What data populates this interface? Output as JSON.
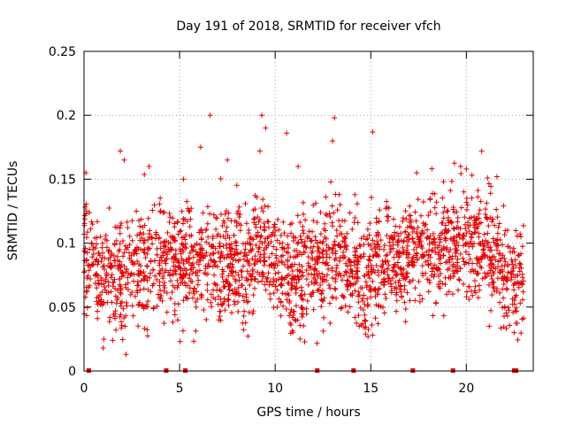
{
  "chart_data": {
    "type": "scatter",
    "title": "Day 191 of 2018, SRMTID for receiver vfch",
    "xlabel": "GPS time / hours",
    "ylabel": "SRMTID / TECUs",
    "xlim": [
      0,
      23.5
    ],
    "ylim": [
      0,
      0.25
    ],
    "x_ticks": [
      0,
      5,
      10,
      15,
      20
    ],
    "x_tick_labels": [
      "0",
      "5",
      "10",
      "15",
      "20"
    ],
    "y_ticks": [
      0,
      0.05,
      0.1,
      0.15,
      0.2,
      0.25
    ],
    "y_tick_labels": [
      "0",
      "0.05",
      "0.1",
      "0.15",
      "0.2",
      "0.25"
    ],
    "grid": true,
    "marker": "plus",
    "marker_color": "#e00000",
    "series": [
      {
        "name": "SRMTID",
        "trend": [
          {
            "x": 0.0,
            "y": 0.092
          },
          {
            "x": 0.5,
            "y": 0.082
          },
          {
            "x": 1.0,
            "y": 0.07
          },
          {
            "x": 1.5,
            "y": 0.075
          },
          {
            "x": 2.0,
            "y": 0.068
          },
          {
            "x": 2.5,
            "y": 0.08
          },
          {
            "x": 3.0,
            "y": 0.078
          },
          {
            "x": 3.5,
            "y": 0.09
          },
          {
            "x": 4.0,
            "y": 0.085
          },
          {
            "x": 4.5,
            "y": 0.095
          },
          {
            "x": 5.0,
            "y": 0.078
          },
          {
            "x": 5.5,
            "y": 0.083
          },
          {
            "x": 6.0,
            "y": 0.08
          },
          {
            "x": 6.5,
            "y": 0.088
          },
          {
            "x": 7.0,
            "y": 0.082
          },
          {
            "x": 7.5,
            "y": 0.085
          },
          {
            "x": 8.0,
            "y": 0.09
          },
          {
            "x": 8.5,
            "y": 0.075
          },
          {
            "x": 9.0,
            "y": 0.095
          },
          {
            "x": 9.5,
            "y": 0.1
          },
          {
            "x": 10.0,
            "y": 0.08
          },
          {
            "x": 10.5,
            "y": 0.075
          },
          {
            "x": 11.0,
            "y": 0.065
          },
          {
            "x": 11.5,
            "y": 0.075
          },
          {
            "x": 12.0,
            "y": 0.085
          },
          {
            "x": 12.5,
            "y": 0.08
          },
          {
            "x": 13.0,
            "y": 0.088
          },
          {
            "x": 13.5,
            "y": 0.085
          },
          {
            "x": 14.0,
            "y": 0.082
          },
          {
            "x": 14.5,
            "y": 0.07
          },
          {
            "x": 15.0,
            "y": 0.075
          },
          {
            "x": 15.5,
            "y": 0.085
          },
          {
            "x": 16.0,
            "y": 0.09
          },
          {
            "x": 16.5,
            "y": 0.085
          },
          {
            "x": 17.0,
            "y": 0.092
          },
          {
            "x": 17.5,
            "y": 0.095
          },
          {
            "x": 18.0,
            "y": 0.088
          },
          {
            "x": 18.5,
            "y": 0.095
          },
          {
            "x": 19.0,
            "y": 0.1
          },
          {
            "x": 19.5,
            "y": 0.098
          },
          {
            "x": 20.0,
            "y": 0.095
          },
          {
            "x": 20.5,
            "y": 0.1
          },
          {
            "x": 21.0,
            "y": 0.095
          },
          {
            "x": 21.5,
            "y": 0.09
          },
          {
            "x": 22.0,
            "y": 0.075
          },
          {
            "x": 22.5,
            "y": 0.07
          },
          {
            "x": 23.0,
            "y": 0.075
          }
        ],
        "outliers": [
          {
            "x": 0.1,
            "y": 0.155
          },
          {
            "x": 1.9,
            "y": 0.172
          },
          {
            "x": 2.1,
            "y": 0.165
          },
          {
            "x": 3.4,
            "y": 0.16
          },
          {
            "x": 5.2,
            "y": 0.15
          },
          {
            "x": 6.1,
            "y": 0.175
          },
          {
            "x": 6.6,
            "y": 0.2
          },
          {
            "x": 7.5,
            "y": 0.165
          },
          {
            "x": 9.3,
            "y": 0.2
          },
          {
            "x": 9.5,
            "y": 0.19
          },
          {
            "x": 9.2,
            "y": 0.172
          },
          {
            "x": 10.6,
            "y": 0.186
          },
          {
            "x": 11.2,
            "y": 0.16
          },
          {
            "x": 13.1,
            "y": 0.198
          },
          {
            "x": 13.0,
            "y": 0.18
          },
          {
            "x": 15.1,
            "y": 0.187
          },
          {
            "x": 17.4,
            "y": 0.155
          },
          {
            "x": 19.7,
            "y": 0.16
          },
          {
            "x": 20.8,
            "y": 0.172
          },
          {
            "x": 20.0,
            "y": 0.158
          },
          {
            "x": 21.6,
            "y": 0.152
          },
          {
            "x": 1.0,
            "y": 0.018
          },
          {
            "x": 2.2,
            "y": 0.013
          },
          {
            "x": 1.5,
            "y": 0.024
          },
          {
            "x": 11.3,
            "y": 0.025
          },
          {
            "x": 22.5,
            "y": 0.03
          },
          {
            "x": 21.2,
            "y": 0.035
          }
        ]
      }
    ],
    "zero_markers_x": [
      0.25,
      4.3,
      12.2,
      14.1,
      17.2,
      19.3,
      22.5,
      5.3,
      22.6
    ]
  }
}
